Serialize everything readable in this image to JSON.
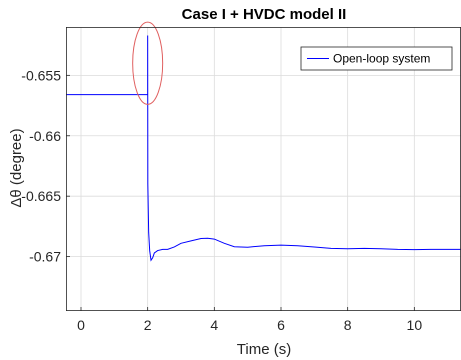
{
  "chart_data": {
    "type": "line",
    "title": "Case I + HVDC model II",
    "xlabel": "Time (s)",
    "ylabel": "Δθ (degree)",
    "xlim": [
      -0.45,
      11.4
    ],
    "ylim": [
      -0.6745,
      -0.651
    ],
    "xticks": [
      0,
      2,
      4,
      6,
      8,
      10
    ],
    "yticks": [
      -0.655,
      -0.66,
      -0.665,
      -0.67
    ],
    "ytick_labels": [
      "-0.655",
      "-0.66",
      "-0.665",
      "-0.67"
    ],
    "xtick_labels": [
      "0",
      "2",
      "4",
      "6",
      "8",
      "10"
    ],
    "grid": true,
    "legend": {
      "position": "top-right",
      "entries": [
        "Open-loop system"
      ]
    },
    "series": [
      {
        "name": "Open-loop system",
        "color": "#0000ff",
        "x": [
          -0.45,
          1.99,
          2.0,
          2.0,
          2.005,
          2.03,
          2.06,
          2.1,
          2.15,
          2.2,
          2.3,
          2.45,
          2.6,
          2.8,
          3.0,
          3.3,
          3.6,
          3.8,
          4.0,
          4.3,
          4.6,
          5.0,
          5.5,
          6.0,
          6.5,
          7.0,
          7.5,
          8.0,
          8.5,
          9.0,
          9.5,
          10.0,
          10.5,
          11.0,
          11.4
        ],
        "y": [
          -0.6566,
          -0.6566,
          -0.6566,
          -0.6517,
          -0.664,
          -0.668,
          -0.6695,
          -0.6703,
          -0.6701,
          -0.6697,
          -0.6695,
          -0.6694,
          -0.6694,
          -0.6692,
          -0.6689,
          -0.6687,
          -0.6685,
          -0.66848,
          -0.66855,
          -0.6689,
          -0.66918,
          -0.66922,
          -0.6691,
          -0.66905,
          -0.6691,
          -0.6692,
          -0.66932,
          -0.66935,
          -0.66932,
          -0.66935,
          -0.6694,
          -0.66942,
          -0.6694,
          -0.6694,
          -0.6694
        ]
      }
    ],
    "annotations": [
      {
        "type": "ellipse",
        "color": "#e06060",
        "cx": 2.0,
        "cy": -0.654,
        "rx": 0.45,
        "ry": 0.0034
      }
    ]
  }
}
